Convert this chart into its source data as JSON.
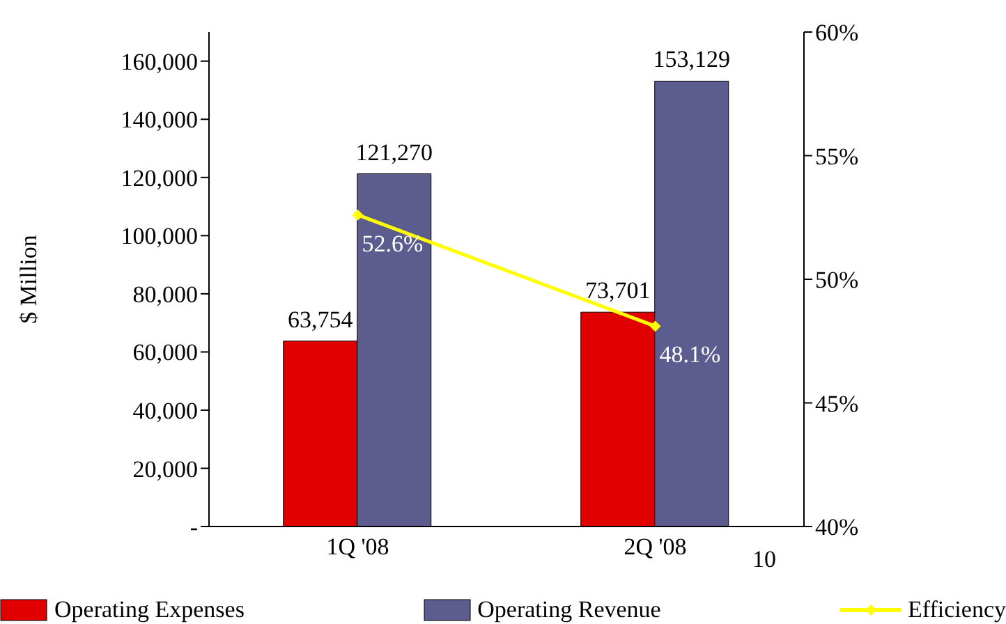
{
  "chart_data": {
    "type": "bar",
    "ylabel": "$ Million",
    "categories": [
      "1Q '08",
      "2Q '08"
    ],
    "series": [
      {
        "name": "Operating Expenses",
        "color": "#e00000",
        "values": [
          63754,
          73701
        ],
        "value_labels": [
          "63,754",
          "73,701"
        ]
      },
      {
        "name": "Operating Revenue",
        "color": "#5c5c8e",
        "values": [
          121270,
          153129
        ],
        "value_labels": [
          "121,270",
          "153,129"
        ]
      },
      {
        "name": "Efficiency",
        "type": "line",
        "axis": "y2",
        "color": "#ffff00",
        "marker": "diamond",
        "line_style": "solid",
        "values": [
          52.6,
          48.1
        ],
        "value_labels": [
          "52.6%",
          "48.1%"
        ]
      }
    ],
    "ylim": [
      0,
      170000
    ],
    "yticks": [
      {
        "value": 0,
        "label": "-"
      },
      {
        "value": 20000,
        "label": "20,000"
      },
      {
        "value": 40000,
        "label": "40,000"
      },
      {
        "value": 60000,
        "label": "60,000"
      },
      {
        "value": 80000,
        "label": "80,000"
      },
      {
        "value": 100000,
        "label": "100,000"
      },
      {
        "value": 120000,
        "label": "120,000"
      },
      {
        "value": 140000,
        "label": "140,000"
      },
      {
        "value": 160000,
        "label": "160,000"
      }
    ],
    "y2lim": [
      40,
      60
    ],
    "y2ticks": [
      {
        "value": 40,
        "label": "40%"
      },
      {
        "value": 45,
        "label": "45%"
      },
      {
        "value": 50,
        "label": "50%"
      },
      {
        "value": 55,
        "label": "55%"
      },
      {
        "value": 60,
        "label": "60%"
      }
    ],
    "legend": "bottom",
    "grid": false,
    "annotations": [
      "10"
    ]
  }
}
